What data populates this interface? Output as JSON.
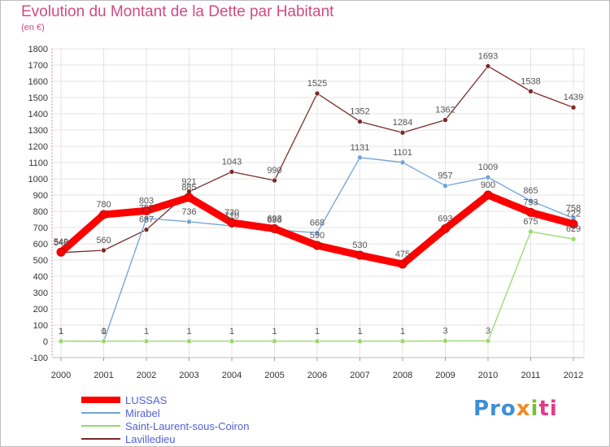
{
  "chart_data": {
    "type": "line",
    "title": "Evolution du Montant de la Dette par Habitant",
    "subtitle": "(en €)",
    "x": [
      "2000",
      "2001",
      "2002",
      "2003",
      "2004",
      "2005",
      "2006",
      "2007",
      "2008",
      "2009",
      "2010",
      "2011",
      "2012"
    ],
    "ylim": [
      -100,
      1800
    ],
    "yticks": [
      -100,
      0,
      100,
      200,
      300,
      400,
      500,
      600,
      700,
      800,
      900,
      1000,
      1100,
      1200,
      1300,
      1400,
      1500,
      1600,
      1700,
      1800
    ],
    "grid": true,
    "legend_position": "bottom-left",
    "series": [
      {
        "name": "LUSSAS",
        "color": "#ff0000",
        "values": [
          549,
          780,
          803,
          885,
          730,
          693,
          590,
          530,
          475,
          693,
          900,
          793,
          722
        ],
        "labels": [
          "549",
          "780",
          "803",
          "885",
          "730",
          "693",
          "590",
          "530",
          "475",
          "693",
          "900",
          "793",
          "722"
        ]
      },
      {
        "name": "Mirabel",
        "color": "#6fa3d8",
        "values": [
          1,
          0,
          757,
          736,
          710,
          686,
          668,
          1131,
          1101,
          957,
          1009,
          865,
          758
        ],
        "labels": [
          "1",
          "0",
          "757",
          "736",
          "710",
          "686",
          "668",
          "1131",
          "1101",
          "957",
          "1009",
          "865",
          "758"
        ]
      },
      {
        "name": "Saint-Laurent-sous-Coiron",
        "color": "#9ad86e",
        "values": [
          1,
          1,
          1,
          1,
          1,
          1,
          1,
          1,
          1,
          3,
          3,
          675,
          629
        ],
        "labels": [
          "1",
          "1",
          "1",
          "1",
          "1",
          "1",
          "1",
          "1",
          "1",
          "3",
          "3",
          "675",
          "629"
        ]
      },
      {
        "name": "Lavilledieu",
        "color": "#7b2a2a",
        "values": [
          546,
          560,
          687,
          921,
          1043,
          990,
          1525,
          1352,
          1284,
          1362,
          1693,
          1538,
          1439
        ],
        "labels": [
          "546",
          "560",
          "687",
          "921",
          "1043",
          "990",
          "1525",
          "1352",
          "1284",
          "1362",
          "1693",
          "1538",
          "1439"
        ]
      }
    ]
  },
  "logo": {
    "p1": "Pro",
    "p2": "x",
    "p3": "i",
    "p4": "ti"
  }
}
